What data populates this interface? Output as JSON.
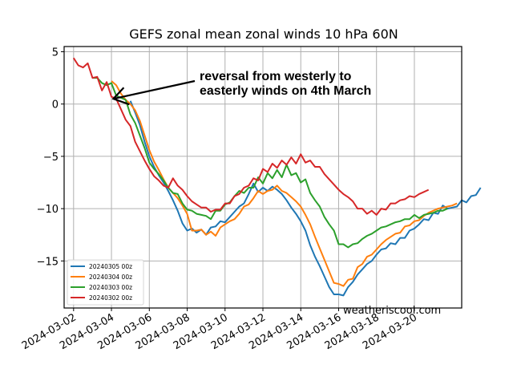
{
  "chart_data": {
    "type": "line",
    "title": "GEFS zonal mean zonal winds 10 hPa 60N",
    "xlabel": "",
    "ylabel": "",
    "x_start": "2024-03-02",
    "x_step_days": 0.25,
    "xlim_days": [
      -0.5,
      20.5
    ],
    "ylim": [
      -19.5,
      5.5
    ],
    "grid": true,
    "x_ticks": [
      "2024-03-02",
      "2024-03-04",
      "2024-03-06",
      "2024-03-08",
      "2024-03-10",
      "2024-03-12",
      "2024-03-14",
      "2024-03-16",
      "2024-03-18",
      "2024-03-20"
    ],
    "y_ticks": [
      5,
      0,
      -5,
      -10,
      -15
    ],
    "y_tick_labels": [
      "5",
      "0",
      "−5",
      "−10",
      "−15"
    ],
    "legend_placement": "lower-left",
    "series": [
      {
        "name": "20240305 00z",
        "color": "#1f77b4",
        "start_day": 3,
        "values": [
          0.3,
          -0.8,
          -2.0,
          -3.6,
          -5.0,
          -6.0,
          -6.8,
          -7.5,
          -8.3,
          -9.2,
          -10.2,
          -11.4,
          -12.1,
          -11.9,
          -12.3,
          -12.0,
          -12.5,
          -11.8,
          -11.7,
          -11.2,
          -11.3,
          -10.8,
          -10.3,
          -9.8,
          -9.5,
          -8.6,
          -7.6,
          -8.4,
          -8.0,
          -8.3,
          -7.9,
          -8.2,
          -8.6,
          -9.2,
          -9.9,
          -10.5,
          -11.2,
          -12.1,
          -13.5,
          -14.6,
          -15.5,
          -16.5,
          -17.5,
          -18.2,
          -18.2,
          -18.3,
          -17.5,
          -17.0,
          -16.3,
          -15.8,
          -15.3,
          -15.0,
          -14.4,
          -13.9,
          -13.8,
          -13.3,
          -13.4,
          -12.8,
          -12.8,
          -12.1,
          -11.9,
          -11.5,
          -11.0,
          -11.1,
          -10.4,
          -10.5,
          -9.7,
          -10.0,
          -9.9,
          -9.8,
          -9.2,
          -9.4,
          -8.8,
          -8.7,
          -8.0
        ]
      },
      {
        "name": "20240304 00z",
        "color": "#ff7f0e",
        "start_day": 2,
        "values": [
          2.2,
          1.8,
          1.0,
          0.4,
          0.0,
          -0.6,
          -1.6,
          -3.0,
          -4.4,
          -5.5,
          -6.3,
          -7.2,
          -8.0,
          -8.5,
          -9.0,
          -9.7,
          -10.5,
          -12.1,
          -12.1,
          -12.0,
          -12.5,
          -12.2,
          -12.6,
          -11.8,
          -11.5,
          -11.2,
          -11.0,
          -10.5,
          -9.8,
          -9.6,
          -9.0,
          -8.3,
          -8.6,
          -8.3,
          -8.2,
          -7.8,
          -8.3,
          -8.5,
          -8.9,
          -9.3,
          -9.8,
          -10.6,
          -11.5,
          -12.7,
          -13.8,
          -14.9,
          -16.0,
          -17.1,
          -17.2,
          -17.4,
          -16.8,
          -16.7,
          -15.6,
          -15.3,
          -14.6,
          -14.4,
          -13.9,
          -13.4,
          -13.0,
          -12.7,
          -12.4,
          -12.3,
          -11.7,
          -11.6,
          -11.2,
          -11.1,
          -10.7,
          -10.4,
          -10.2,
          -10.0,
          -9.9,
          -9.8,
          -9.7,
          -9.5
        ]
      },
      {
        "name": "20240303 00z",
        "color": "#2ca02c",
        "start_day": 1,
        "values": [
          2.5,
          2.5,
          2.0,
          1.8,
          2.0,
          0.8,
          0.6,
          0.4,
          -1.0,
          -1.8,
          -3.0,
          -4.2,
          -5.6,
          -6.2,
          -6.7,
          -7.3,
          -8.0,
          -8.5,
          -8.6,
          -9.5,
          -10.1,
          -10.2,
          -10.5,
          -10.6,
          -10.7,
          -11.0,
          -10.2,
          -10.2,
          -9.6,
          -9.4,
          -8.8,
          -8.3,
          -8.5,
          -8.0,
          -8.0,
          -7.0,
          -7.6,
          -6.6,
          -7.1,
          -6.3,
          -7.0,
          -5.8,
          -6.8,
          -6.6,
          -7.5,
          -7.2,
          -8.5,
          -9.2,
          -9.8,
          -10.8,
          -11.5,
          -12.1,
          -13.4,
          -13.4,
          -13.7,
          -13.4,
          -13.3,
          -12.9,
          -12.6,
          -12.4,
          -12.1,
          -11.8,
          -11.7,
          -11.5,
          -11.3,
          -11.2,
          -11.0,
          -11.0,
          -10.6,
          -10.9,
          -10.6,
          -10.5,
          -10.4,
          -10.2,
          -10.2,
          -10.0
        ]
      },
      {
        "name": "20240302 00z",
        "color": "#d62728",
        "start_day": 0,
        "values": [
          4.4,
          3.7,
          3.5,
          3.9,
          2.5,
          2.6,
          1.3,
          2.1,
          0.7,
          0.5,
          -0.5,
          -1.5,
          -2.1,
          -3.6,
          -4.5,
          -5.4,
          -6.2,
          -6.9,
          -7.3,
          -7.8,
          -8.0,
          -7.1,
          -7.8,
          -8.2,
          -8.8,
          -9.3,
          -9.6,
          -9.9,
          -9.9,
          -10.3,
          -10.1,
          -10.1,
          -9.5,
          -9.5,
          -8.8,
          -8.6,
          -8.0,
          -7.8,
          -7.1,
          -7.3,
          -6.2,
          -6.5,
          -5.7,
          -6.1,
          -5.4,
          -5.8,
          -5.1,
          -5.7,
          -4.8,
          -5.6,
          -5.4,
          -6.0,
          -6.0,
          -6.7,
          -7.2,
          -7.7,
          -8.2,
          -8.6,
          -8.9,
          -9.3,
          -10.0,
          -10.0,
          -10.5,
          -10.2,
          -10.6,
          -10.0,
          -10.1,
          -9.5,
          -9.5,
          -9.2,
          -9.1,
          -8.8,
          -8.9,
          -8.6,
          -8.4,
          -8.2
        ]
      }
    ],
    "annotation": {
      "lines": [
        "reversal from westerly to",
        "easterly winds on 4th March"
      ],
      "arrow_target_day": 2.1,
      "arrow_target_value": 0.5
    },
    "watermark": "weatheriscool.com"
  }
}
